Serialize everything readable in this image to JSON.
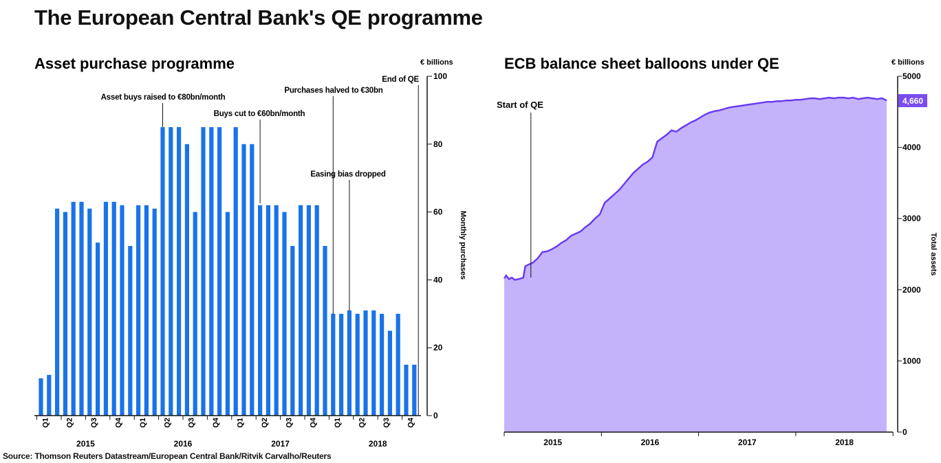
{
  "title": "The European Central Bank's QE programme",
  "source": "Source: Thomson Reuters Datastream/European Central Bank/Ritvik Carvalho/Reuters",
  "colors": {
    "bar": "#1a73e8",
    "area_fill": "#c4b3fb",
    "area_line": "#6a3cf0",
    "badge": "#7a4cf0"
  },
  "chart_data": [
    {
      "type": "bar",
      "title": "Asset purchase programme",
      "unit": "€ billions",
      "ylabel": "Monthly purchases",
      "ylim": [
        0,
        100
      ],
      "yticks": [
        0,
        20,
        40,
        60,
        80,
        100
      ],
      "grid": false,
      "quarter_labels": [
        "Q1",
        "Q2",
        "Q3",
        "Q4",
        "Q1",
        "Q2",
        "Q3",
        "Q4",
        "Q1",
        "Q2",
        "Q3",
        "Q4",
        "Q1",
        "Q2",
        "Q3",
        "Q4"
      ],
      "year_labels": [
        "2015",
        "2016",
        "2017",
        "2018"
      ],
      "values": [
        11,
        12,
        61,
        60,
        63,
        63,
        61,
        51,
        63,
        63,
        62,
        50,
        62,
        62,
        61,
        85,
        85,
        85,
        80,
        60,
        85,
        85,
        85,
        60,
        85,
        80,
        80,
        62,
        62,
        62,
        60,
        50,
        62,
        62,
        62,
        50,
        30,
        30,
        31,
        30,
        31,
        31,
        30,
        25,
        30,
        15,
        15
      ],
      "annotations": [
        {
          "text": "Asset buys raised to €80bn/month",
          "bar": 15
        },
        {
          "text": "Buys cut to €60bn/month",
          "bar": 27
        },
        {
          "text": "Purchases halved to €30bn",
          "bar": 36
        },
        {
          "text": "Easing bias dropped",
          "bar": 38
        },
        {
          "text": "End of QE",
          "bar": 46.5
        }
      ]
    },
    {
      "type": "area",
      "title": "ECB balance sheet balloons under QE",
      "unit": "€ billions",
      "ylabel": "Total assets",
      "ylim": [
        0,
        5000
      ],
      "yticks": [
        0,
        1000,
        2000,
        3000,
        4000,
        5000
      ],
      "grid": false,
      "x_labels": [
        "2015",
        "2016",
        "2017",
        "2018"
      ],
      "last_value_label": "4,660",
      "annotations": [
        {
          "text": "Start of QE",
          "t": 0.2
        }
      ],
      "t": [
        0,
        0.02,
        0.05,
        0.08,
        0.11,
        0.15,
        0.2,
        0.22,
        0.25,
        0.3,
        0.35,
        0.4,
        0.45,
        0.5,
        0.55,
        0.6,
        0.65,
        0.7,
        0.75,
        0.8,
        0.85,
        0.9,
        0.95,
        1.0,
        1.05,
        1.1,
        1.15,
        1.2,
        1.25,
        1.3,
        1.35,
        1.4,
        1.45,
        1.5,
        1.55,
        1.6,
        1.65,
        1.7,
        1.75,
        1.8,
        1.85,
        1.9,
        1.95,
        2.0,
        2.05,
        2.1,
        2.15,
        2.2,
        2.25,
        2.3,
        2.35,
        2.4,
        2.45,
        2.5,
        2.55,
        2.6,
        2.65,
        2.7,
        2.75,
        2.8,
        2.85,
        2.9,
        2.95,
        3.0,
        3.05,
        3.1,
        3.15,
        3.2,
        3.25,
        3.3,
        3.35,
        3.4,
        3.45,
        3.5,
        3.55,
        3.6,
        3.65,
        3.7,
        3.75,
        3.8,
        3.85,
        3.9,
        3.95,
        4.0
      ],
      "values": [
        2160,
        2200,
        2150,
        2170,
        2140,
        2150,
        2170,
        2330,
        2350,
        2380,
        2440,
        2530,
        2540,
        2570,
        2610,
        2660,
        2700,
        2760,
        2790,
        2820,
        2880,
        2930,
        3000,
        3060,
        3220,
        3280,
        3340,
        3400,
        3480,
        3560,
        3640,
        3700,
        3760,
        3800,
        3860,
        4080,
        4130,
        4180,
        4240,
        4220,
        4270,
        4310,
        4350,
        4380,
        4420,
        4460,
        4490,
        4510,
        4520,
        4540,
        4560,
        4570,
        4580,
        4590,
        4600,
        4610,
        4620,
        4630,
        4640,
        4640,
        4650,
        4650,
        4660,
        4660,
        4670,
        4670,
        4680,
        4690,
        4690,
        4680,
        4690,
        4700,
        4690,
        4700,
        4700,
        4690,
        4700,
        4680,
        4690,
        4700,
        4690,
        4680,
        4690,
        4660
      ]
    }
  ]
}
